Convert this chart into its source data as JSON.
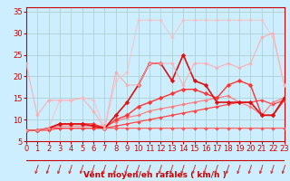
{
  "background_color": "#cceeff",
  "grid_color": "#aacccc",
  "xlabel": "Vent moyen/en rafales ( km/h )",
  "xlim": [
    0,
    23
  ],
  "ylim": [
    5,
    36
  ],
  "yticks": [
    5,
    10,
    15,
    20,
    25,
    30,
    35
  ],
  "xticks": [
    0,
    1,
    2,
    3,
    4,
    5,
    6,
    7,
    8,
    9,
    10,
    11,
    12,
    13,
    14,
    15,
    16,
    17,
    18,
    19,
    20,
    21,
    22,
    23
  ],
  "lines": [
    {
      "x": [
        0,
        1,
        2,
        3,
        4,
        5,
        6,
        7,
        8,
        9,
        10,
        11,
        12,
        13,
        14,
        15,
        16,
        17,
        18,
        19,
        20,
        21,
        22,
        23
      ],
      "y": [
        7.5,
        7.5,
        7.5,
        8,
        8,
        8,
        8,
        8,
        8,
        8,
        8,
        8,
        8,
        8,
        8,
        8,
        8,
        8,
        8,
        8,
        8,
        8,
        8,
        8
      ],
      "color": "#ff5555",
      "linewidth": 0.8,
      "markersize": 2.0,
      "alpha": 1.0
    },
    {
      "x": [
        0,
        1,
        2,
        3,
        4,
        5,
        6,
        7,
        8,
        9,
        10,
        11,
        12,
        13,
        14,
        15,
        16,
        17,
        18,
        19,
        20,
        21,
        22,
        23
      ],
      "y": [
        7.5,
        7.5,
        8,
        8,
        8,
        8,
        8,
        8,
        8.5,
        9,
        9.5,
        10,
        10.5,
        11,
        11.5,
        12,
        12.5,
        13,
        13.5,
        14,
        14,
        14.5,
        13.5,
        14.5
      ],
      "color": "#ff4444",
      "linewidth": 0.9,
      "markersize": 2.0,
      "alpha": 1.0
    },
    {
      "x": [
        0,
        1,
        2,
        3,
        4,
        5,
        6,
        7,
        8,
        9,
        10,
        11,
        12,
        13,
        14,
        15,
        16,
        17,
        18,
        19,
        20,
        21,
        22,
        23
      ],
      "y": [
        7.5,
        7.5,
        8,
        8.5,
        8.5,
        8.5,
        8.5,
        8.5,
        9.5,
        10.5,
        11,
        12,
        12.5,
        13,
        13.5,
        14,
        14.5,
        15,
        15.5,
        14,
        13,
        11,
        14,
        15
      ],
      "color": "#ff7777",
      "linewidth": 0.9,
      "markersize": 2.0,
      "alpha": 0.9
    },
    {
      "x": [
        0,
        1,
        2,
        3,
        4,
        5,
        6,
        7,
        8,
        9,
        10,
        11,
        12,
        13,
        14,
        15,
        16,
        17,
        18,
        19,
        20,
        21,
        22,
        23
      ],
      "y": [
        7.5,
        7.5,
        8,
        9,
        9,
        9,
        9,
        8,
        10,
        11,
        13,
        14,
        15,
        16,
        17,
        17,
        16,
        15,
        18,
        19,
        18,
        11,
        11,
        14.5
      ],
      "color": "#ff3333",
      "linewidth": 1.0,
      "markersize": 2.5,
      "alpha": 1.0
    },
    {
      "x": [
        0,
        1,
        2,
        3,
        4,
        5,
        6,
        7,
        8,
        9,
        10,
        11,
        12,
        13,
        14,
        15,
        16,
        17,
        18,
        19,
        20,
        21,
        22,
        23
      ],
      "y": [
        7.5,
        7.5,
        8,
        9,
        9,
        9,
        8.5,
        8,
        11,
        14,
        18,
        23,
        23,
        19,
        25,
        19,
        18,
        14,
        14,
        14,
        14,
        11,
        11,
        15
      ],
      "color": "#dd1111",
      "linewidth": 1.2,
      "markersize": 2.5,
      "alpha": 1.0
    },
    {
      "x": [
        0,
        1,
        2,
        3,
        4,
        5,
        6,
        7,
        8,
        9,
        10,
        11,
        12,
        13,
        14,
        15,
        16,
        17,
        18,
        19,
        20,
        21,
        22,
        23
      ],
      "y": [
        23,
        11,
        14.5,
        14.5,
        14.5,
        15,
        12,
        8,
        21,
        18,
        18,
        23,
        23,
        23,
        18,
        23,
        23,
        22,
        23,
        22,
        23,
        29,
        30,
        18
      ],
      "color": "#ffaaaa",
      "linewidth": 0.9,
      "markersize": 2.0,
      "alpha": 0.8
    },
    {
      "x": [
        0,
        1,
        2,
        3,
        4,
        5,
        6,
        7,
        8,
        9,
        10,
        11,
        12,
        13,
        14,
        15,
        16,
        17,
        18,
        19,
        20,
        21,
        22,
        23
      ],
      "y": [
        7.5,
        7.5,
        8,
        14.5,
        14.5,
        15,
        14.5,
        8,
        19,
        21,
        33,
        33,
        33,
        29,
        33,
        33,
        33,
        33,
        33,
        33,
        33,
        33,
        29,
        18
      ],
      "color": "#ffbbbb",
      "linewidth": 0.9,
      "markersize": 2.0,
      "alpha": 0.65
    }
  ],
  "label_fontsize": 6.5,
  "tick_fontsize": 6.0,
  "tick_color": "#cc0000",
  "label_color": "#cc0000",
  "spine_color": "#cc0000"
}
